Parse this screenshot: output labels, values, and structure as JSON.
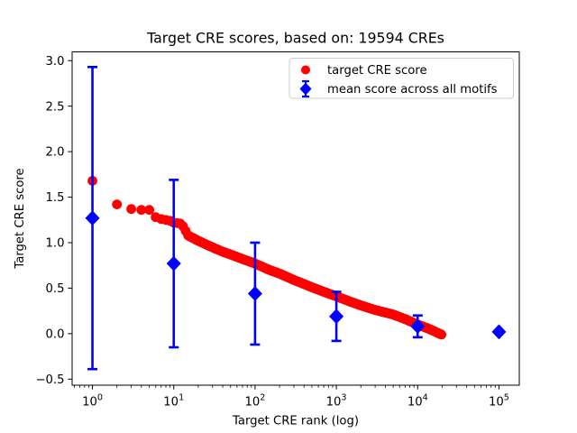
{
  "chart_data": {
    "type": "scatter",
    "title": "Target CRE scores, based on: 19594 CREs",
    "xlabel": "Target CRE rank (log)",
    "ylabel": "Target CRE score",
    "x_scale": "log",
    "grid": false,
    "n_cres": 19594,
    "xlim_log10": [
      -0.25,
      5.25
    ],
    "ylim": [
      -0.5665,
      3.0965
    ],
    "yticks": [
      3.0,
      2.5,
      2.0,
      1.5,
      1.0,
      0.5,
      0.0,
      -0.5
    ],
    "xtick_exponents": [
      0,
      1,
      2,
      3,
      4,
      5
    ],
    "xtick_base": "10",
    "legend": {
      "position": "upper right",
      "entries": [
        {
          "label": "target CRE score",
          "color": "#ff0000",
          "marker": "circle"
        },
        {
          "label": "mean score across all motifs",
          "color": "#0000ff",
          "marker": "diamond-errorbar"
        }
      ]
    },
    "series": [
      {
        "name": "target CRE score",
        "color": "#ff0000",
        "marker": "circle",
        "max_rank": 19594,
        "anchor_points": [
          [
            1,
            1.68
          ],
          [
            2,
            1.42
          ],
          [
            3,
            1.37
          ],
          [
            4,
            1.36
          ],
          [
            5,
            1.36
          ],
          [
            6,
            1.28
          ],
          [
            7,
            1.26
          ],
          [
            8,
            1.25
          ],
          [
            9,
            1.24
          ],
          [
            10,
            1.22
          ],
          [
            12,
            1.21
          ],
          [
            13,
            1.18
          ],
          [
            15,
            1.08
          ],
          [
            20,
            1.02
          ],
          [
            28,
            0.96
          ],
          [
            40,
            0.9
          ],
          [
            50,
            0.87
          ],
          [
            70,
            0.82
          ],
          [
            100,
            0.77
          ],
          [
            150,
            0.7
          ],
          [
            200,
            0.66
          ],
          [
            300,
            0.59
          ],
          [
            500,
            0.51
          ],
          [
            700,
            0.46
          ],
          [
            1000,
            0.41
          ],
          [
            1500,
            0.35
          ],
          [
            2000,
            0.31
          ],
          [
            3000,
            0.26
          ],
          [
            5000,
            0.21
          ],
          [
            7000,
            0.16
          ],
          [
            10000,
            0.1
          ],
          [
            14000,
            0.05
          ],
          [
            19594,
            -0.01
          ]
        ]
      },
      {
        "name": "mean score across all motifs",
        "color": "#0000ff",
        "marker": "diamond",
        "error_bars": true,
        "points": [
          {
            "rank": 1,
            "mean": 1.27,
            "err": 1.66
          },
          {
            "rank": 10,
            "mean": 0.77,
            "err": 0.92
          },
          {
            "rank": 100,
            "mean": 0.44,
            "err": 0.56
          },
          {
            "rank": 1000,
            "mean": 0.19,
            "err": 0.27
          },
          {
            "rank": 10000,
            "mean": 0.08,
            "err": 0.12
          },
          {
            "rank": 100000,
            "mean": 0.02,
            "err": 0.01
          }
        ]
      }
    ],
    "colors": {
      "red": "#ff0000",
      "blue": "#0000ff",
      "text": "#000000",
      "axes": "#000000",
      "legend_border": "#cccccc",
      "background": "#ffffff"
    }
  }
}
